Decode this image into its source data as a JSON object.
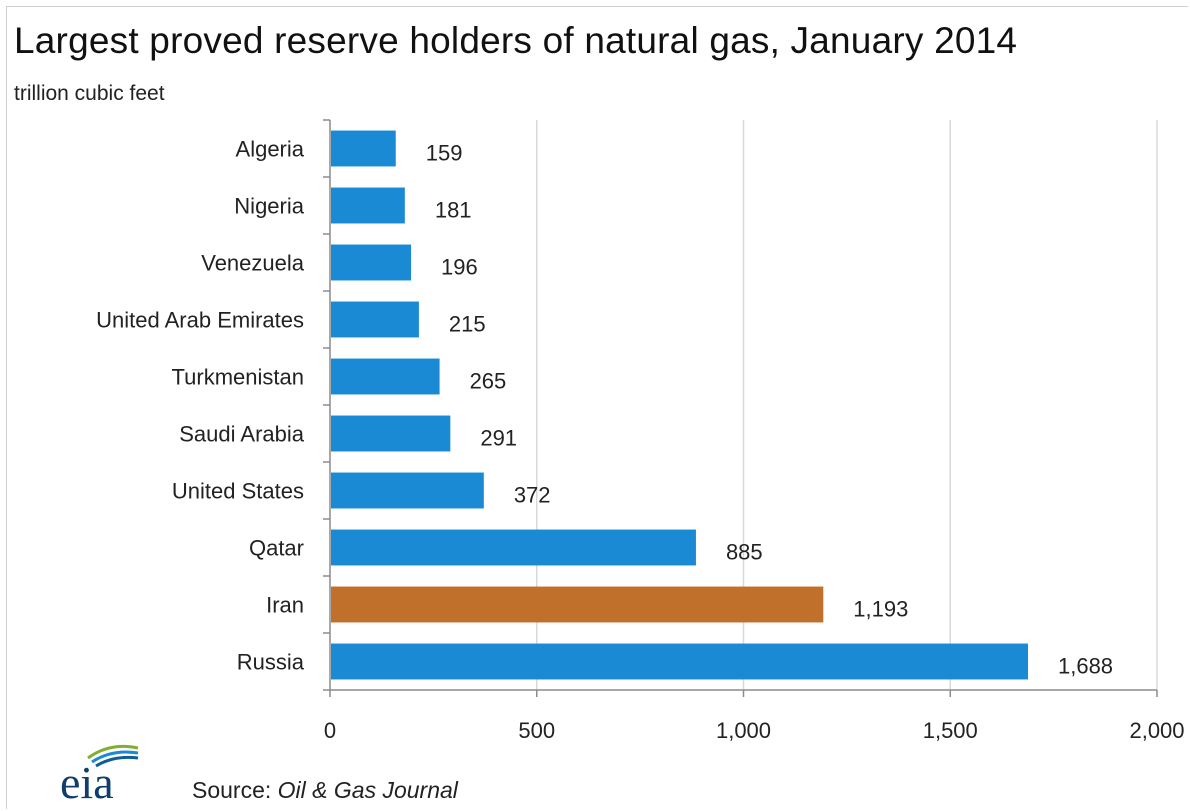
{
  "chart_data": {
    "type": "bar",
    "orientation": "horizontal",
    "title": "Largest  proved reserve holders of natural  gas, January 2014",
    "subtitle": "trillion  cubic feet",
    "categories": [
      "Algeria",
      "Nigeria",
      "Venezuela",
      "United Arab Emirates",
      "Turkmenistan",
      "Saudi Arabia",
      "United States",
      "Qatar",
      "Iran",
      "Russia"
    ],
    "values": [
      159,
      181,
      196,
      215,
      265,
      291,
      372,
      885,
      1193,
      1688
    ],
    "value_labels": [
      "159",
      "181",
      "196",
      "215",
      "265",
      "291",
      "372",
      "885",
      "1,193",
      "1,688"
    ],
    "highlight_category": "Iran",
    "colors": {
      "bar": "#1a8ad4",
      "highlight": "#c0702a",
      "grid": "#d9d9d9"
    },
    "xlim": [
      0,
      2000
    ],
    "xticks": [
      0,
      500,
      1000,
      1500,
      2000
    ],
    "xtick_labels": [
      "0",
      "500",
      "1,000",
      "1,500",
      "2,000"
    ],
    "grid": true,
    "legend": false
  },
  "source": {
    "prefix": "Source: ",
    "name": "Oil & Gas Journal"
  },
  "logo": {
    "text": "eia",
    "icon": "eia-logo"
  }
}
